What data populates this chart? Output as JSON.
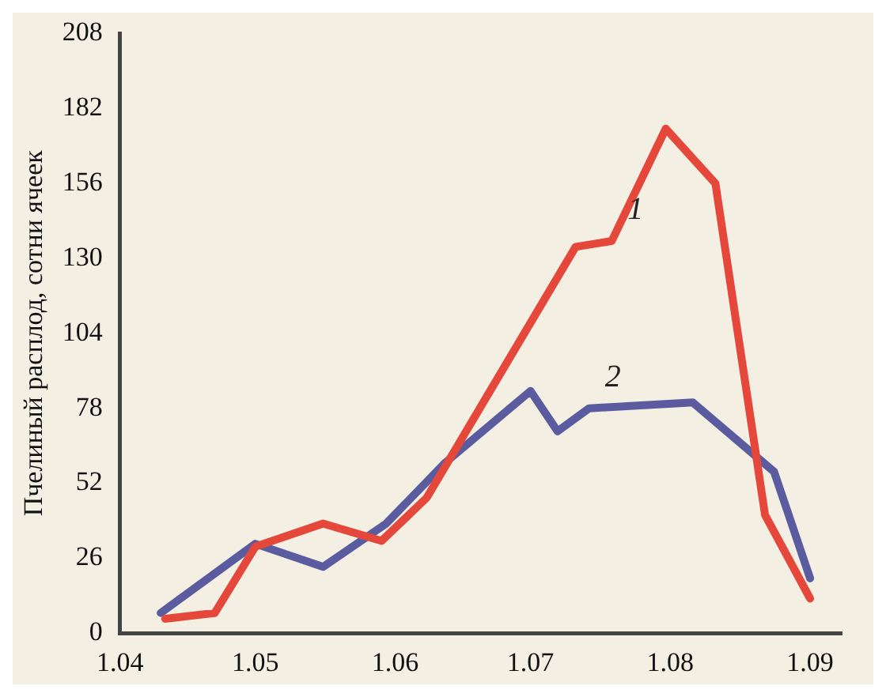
{
  "chart_data": {
    "type": "line",
    "ylabel": "Пчелиный расплод, сотни ячеек",
    "xlim": [
      "--04-01",
      "--09-08"
    ],
    "xticks": [
      {
        "value": "--04-01",
        "label": "1.04"
      },
      {
        "value": "--05-01",
        "label": "1.05"
      },
      {
        "value": "--06-01",
        "label": "1.06"
      },
      {
        "value": "--07-01",
        "label": "1.07"
      },
      {
        "value": "--08-01",
        "label": "1.08"
      },
      {
        "value": "--09-01",
        "label": "1.09"
      }
    ],
    "ylim": [
      0,
      208
    ],
    "yticks": [
      0,
      26,
      52,
      78,
      104,
      130,
      156,
      182,
      208
    ],
    "grid": false,
    "legend": false,
    "marker": "none",
    "line_style": "solid",
    "series": [
      {
        "name": "1",
        "color": "#e5483a",
        "x": [
          "--04-11",
          "--04-22",
          "--05-01",
          "--05-16",
          "--05-29",
          "--06-08",
          "--07-11",
          "--07-19",
          "--07-31",
          "--08-11",
          "--08-22",
          "--09-01"
        ],
        "values": [
          5,
          7,
          30,
          38,
          32,
          47,
          134,
          136,
          175,
          156,
          41,
          12
        ]
      },
      {
        "name": "2",
        "color": "#5b5c9f",
        "x": [
          "--04-10",
          "--05-01",
          "--05-16",
          "--05-30",
          "--06-12",
          "--07-01",
          "--07-07",
          "--07-14",
          "--08-06",
          "--08-24",
          "--09-01"
        ],
        "values": [
          7,
          31,
          23,
          38,
          59,
          84,
          70,
          78,
          80,
          56,
          19
        ]
      }
    ]
  }
}
